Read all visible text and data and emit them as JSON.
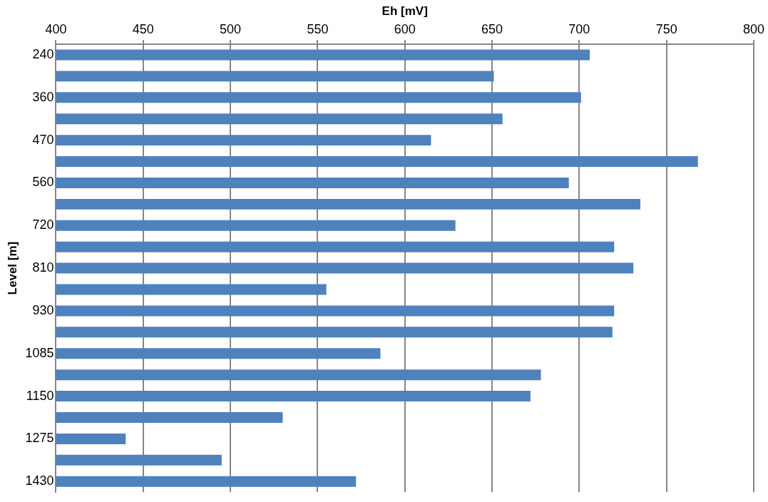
{
  "chart_data": {
    "type": "bar",
    "orientation": "horizontal",
    "xlabel": "Eh [mV]",
    "ylabel": "Level [m]",
    "categories": [
      "240",
      null,
      "360",
      null,
      "470",
      null,
      "560",
      null,
      "720",
      null,
      "810",
      null,
      "930",
      null,
      "1085",
      null,
      "1150",
      null,
      "1275",
      null,
      "1430"
    ],
    "values": [
      706,
      651,
      701,
      656,
      615,
      768,
      694,
      735,
      629,
      720,
      731,
      555,
      720,
      719,
      586,
      678,
      672,
      530,
      440,
      495,
      572
    ],
    "color": "#4f81bd",
    "xlim": [
      400,
      800
    ],
    "xticks": [
      400,
      450,
      500,
      550,
      600,
      650,
      700,
      750,
      800
    ],
    "grid": "x",
    "legend": false
  }
}
